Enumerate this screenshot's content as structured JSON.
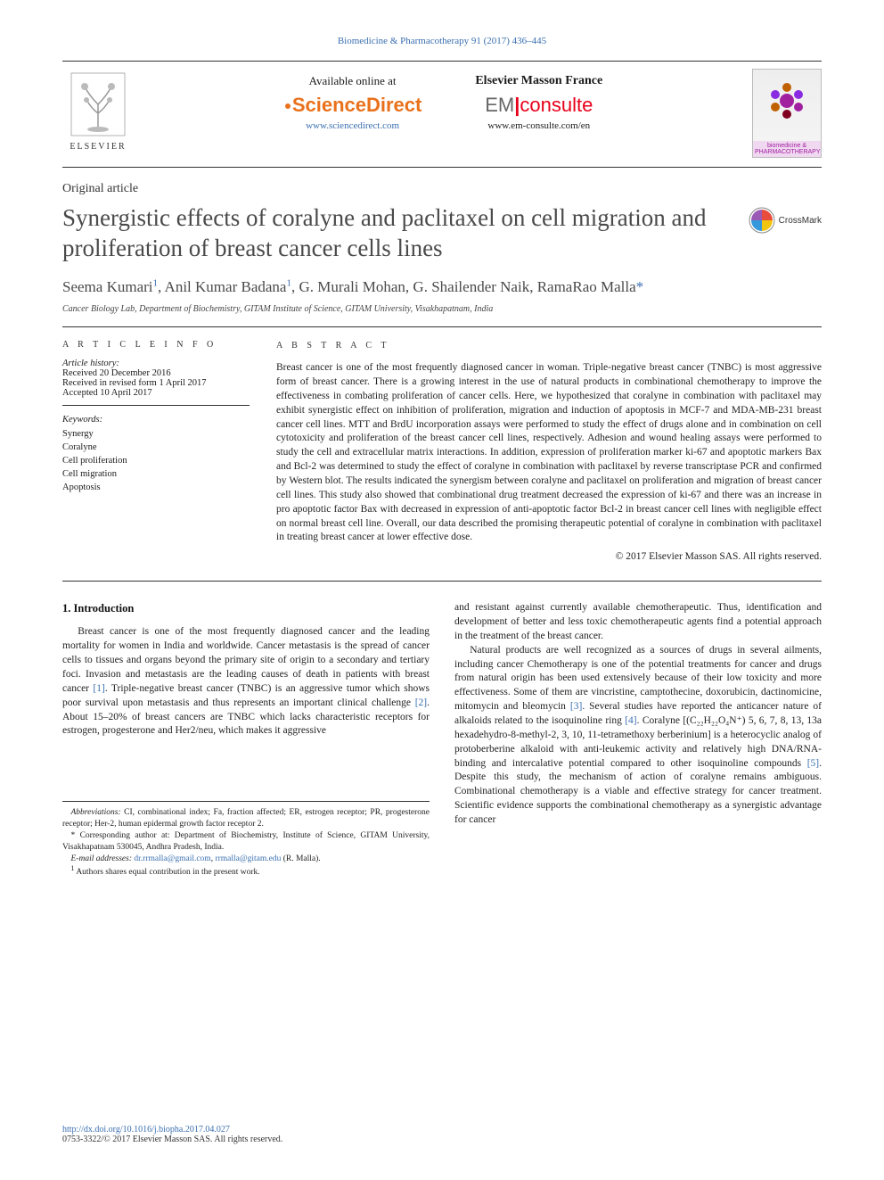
{
  "colors": {
    "link": "#3a6fb0",
    "sd_orange": "#e9711c",
    "em_red": "#e9001a",
    "text": "#1a1a1a",
    "title_gray": "#4a4a4a"
  },
  "header": {
    "journal_link": "Biomedicine & Pharmacotherapy 91 (2017) 436–445",
    "elsevier": "ELSEVIER",
    "sd": {
      "available": "Available online at",
      "logo": "ScienceDirect",
      "url": "www.sciencedirect.com"
    },
    "em": {
      "brand": "Elsevier Masson France",
      "logo_em": "EM",
      "logo_consulte": "consulte",
      "url": "www.em-consulte.com/en"
    },
    "cover_title": "biomedicine & PHARMACOTHERAPY"
  },
  "article": {
    "type": "Original article",
    "title": "Synergistic effects of coralyne and paclitaxel on cell migration and proliferation of breast cancer cells lines",
    "crossmark": "CrossMark",
    "authors_html": "Seema Kumari<sup>1</sup>, Anil Kumar Badana<sup>1</sup>, G. Murali Mohan, G. Shailender Naik, RamaRao Malla<span class='star'>*</span>",
    "affiliation": "Cancer Biology Lab, Department of Biochemistry, GITAM Institute of Science, GITAM University, Visakhapatnam, India"
  },
  "info": {
    "heading": "A R T I C L E   I N F O",
    "history_label": "Article history:",
    "received": "Received 20 December 2016",
    "revised": "Received in revised form 1 April 2017",
    "accepted": "Accepted 10 April 2017",
    "keywords_label": "Keywords:",
    "keywords": [
      "Synergy",
      "Coralyne",
      "Cell proliferation",
      "Cell migration",
      "Apoptosis"
    ]
  },
  "abstract": {
    "heading": "A B S T R A C T",
    "body": "Breast cancer is one of the most frequently diagnosed cancer in woman. Triple-negative breast cancer (TNBC) is most aggressive form of breast cancer. There is a growing interest in the use of natural products in combinational chemotherapy to improve the effectiveness in combating proliferation of cancer cells. Here, we hypothesized that coralyne in combination with paclitaxel may exhibit synergistic effect on inhibition of proliferation, migration and induction of apoptosis in MCF-7 and MDA-MB-231 breast cancer cell lines. MTT and BrdU incorporation assays were performed to study the effect of drugs alone and in combination on cell cytotoxicity and proliferation of the breast cancer cell lines, respectively. Adhesion and wound healing assays were performed to study the cell and extracellular matrix interactions. In addition, expression of proliferation marker ki-67 and apoptotic markers Bax and Bcl-2 was determined to study the effect of coralyne in combination with paclitaxel by reverse transcriptase PCR and confirmed by Western blot. The results indicated the synergism between coralyne and paclitaxel on proliferation and migration of breast cancer cell lines. This study also showed that combinational drug treatment decreased the expression of ki-67 and there was an increase in pro apoptotic factor Bax with decreased in expression of anti-apoptotic factor Bcl-2 in breast cancer cell lines with negligible effect on normal breast cell line. Overall, our data described the promising therapeutic potential of coralyne in combination with paclitaxel in treating breast cancer at lower effective dose.",
    "copyright": "© 2017 Elsevier Masson SAS. All rights reserved."
  },
  "introduction": {
    "heading": "1. Introduction",
    "p1": "Breast cancer is one of the most frequently diagnosed cancer and the leading mortality for women in India and worldwide. Cancer metastasis is the spread of cancer cells to tissues and organs beyond the primary site of origin to a secondary and tertiary foci. Invasion and metastasis are the leading causes of death in patients with breast cancer [1]. Triple-negative breast cancer (TNBC) is an aggressive tumor which shows poor survival upon metastasis and thus represents an important clinical challenge [2]. About 15–20% of breast cancers are TNBC which lacks characteristic receptors for estrogen, progesterone and Her2/neu, which makes it aggressive",
    "p2": "and resistant against currently available chemotherapeutic. Thus, identification and development of better and less toxic chemotherapeutic agents find a potential approach in the treatment of the breast cancer.",
    "p3": "Natural products are well recognized as a sources of drugs in several ailments, including cancer Chemotherapy is one of the potential treatments for cancer and drugs from natural origin has been used extensively because of their low toxicity and more effectiveness. Some of them are vincristine, camptothecine, doxorubicin, dactinomicine, mitomycin and bleomycin [3]. Several studies have reported the anticancer nature of alkaloids related to the isoquinoline ring [4]. Coralyne [(C₂₂H₂₂O₄N⁺) 5, 6, 7, 8, 13, 13a hexadehydro-8-methyl-2, 3, 10, 11-tetramethoxy berberinium] is a heterocyclic analog of protoberberine alkaloid with anti-leukemic activity and relatively high DNA/RNA-binding and intercalative potential compared to other isoquinoline compounds [5]. Despite this study, the mechanism of action of coralyne remains ambiguous. Combinational chemotherapy is a viable and effective strategy for cancer treatment. Scientific evidence supports the combinational chemotherapy as a synergistic advantage for cancer",
    "refs": {
      "1": "[1]",
      "2": "[2]",
      "3": "[3]",
      "4": "[4]",
      "5": "[5]"
    }
  },
  "footnotes": {
    "abbrev_label": "Abbreviations:",
    "abbrev": " CI, combinational index; Fa, fraction affected; ER, estrogen receptor; PR, progesterone receptor; Her-2, human epidermal growth factor receptor 2.",
    "corr": "* Corresponding author at: Department of Biochemistry, Institute of Science, GITAM University, Visakhapatnam 530045, Andhra Pradesh, India.",
    "email_label": "E-mail addresses:",
    "email1": "dr.rrmalla@gmail.com",
    "email_sep": ", ",
    "email2": "rrmalla@gitam.edu",
    "email_paren": " (R. Malla).",
    "share": "Authors shares equal contribution in the present work.",
    "share_sup": "1"
  },
  "bottom": {
    "doi": "http://dx.doi.org/10.1016/j.biopha.2017.04.027",
    "issn": "0753-3322/© 2017 Elsevier Masson SAS. All rights reserved."
  }
}
